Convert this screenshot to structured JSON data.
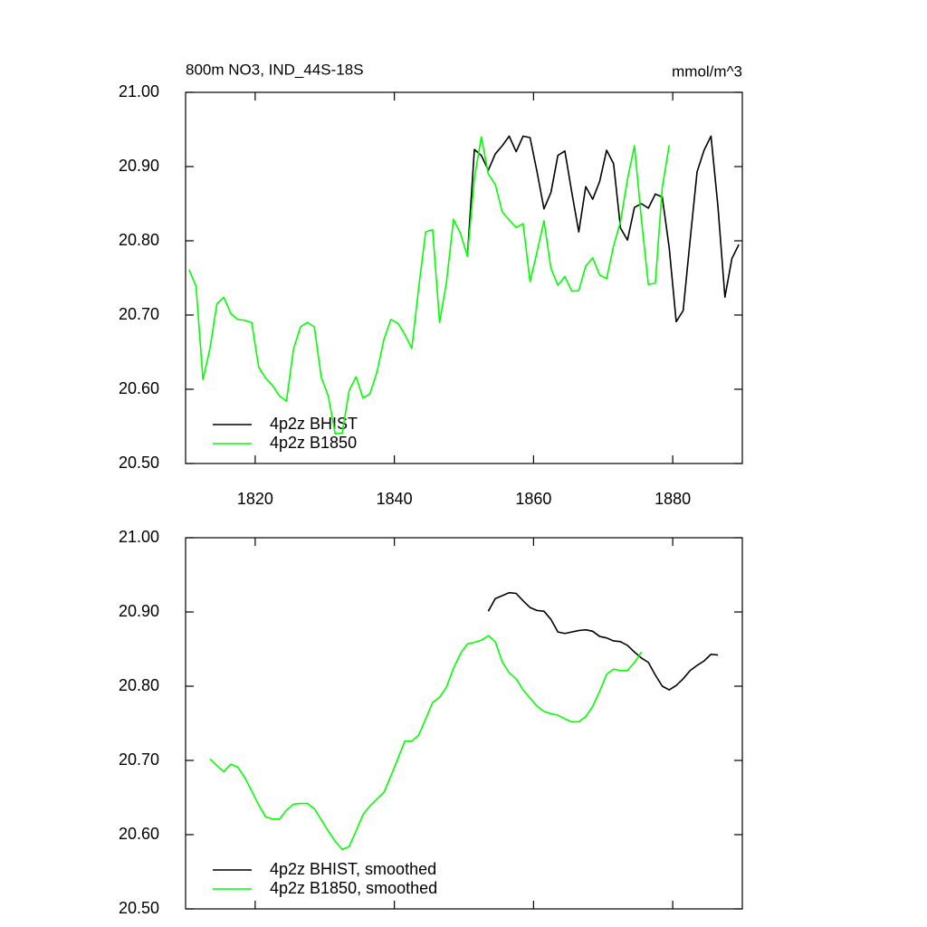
{
  "chart_data": [
    {
      "type": "line",
      "title": "800m NO3, IND_44S-18S",
      "units": "mmol/m^3",
      "x": [
        1810.5,
        1811.5,
        1812.5,
        1813.5,
        1814.5,
        1815.5,
        1816.5,
        1817.5,
        1818.5,
        1819.5,
        1820.5,
        1821.5,
        1822.5,
        1823.5,
        1824.5,
        1825.5,
        1826.5,
        1827.5,
        1828.5,
        1829.5,
        1830.5,
        1831.5,
        1832.5,
        1833.5,
        1834.5,
        1835.5,
        1836.5,
        1837.5,
        1838.5,
        1839.5,
        1840.5,
        1841.5,
        1842.5,
        1843.5,
        1844.5,
        1845.5,
        1846.5,
        1847.5,
        1848.5,
        1849.5,
        1850.5,
        1851.5,
        1852.5,
        1853.5,
        1854.5,
        1855.5,
        1856.5,
        1857.5,
        1858.5,
        1859.5,
        1860.5,
        1861.5,
        1862.5,
        1863.5,
        1864.5,
        1865.5,
        1866.5,
        1867.5,
        1868.5,
        1869.5,
        1870.5,
        1871.5,
        1872.5,
        1873.5,
        1874.5,
        1875.5,
        1876.5,
        1877.5,
        1878.5,
        1879.5,
        1880.5,
        1881.5,
        1882.5,
        1883.5,
        1884.5,
        1885.5,
        1886.5,
        1887.5,
        1888.5,
        1889.5
      ],
      "series": [
        {
          "name": "4p2z BHIST",
          "color": "#000000",
          "values": [
            null,
            null,
            null,
            null,
            null,
            null,
            null,
            null,
            null,
            null,
            null,
            null,
            null,
            null,
            null,
            null,
            null,
            null,
            null,
            null,
            null,
            null,
            null,
            null,
            null,
            null,
            null,
            null,
            null,
            null,
            null,
            null,
            null,
            null,
            null,
            null,
            null,
            null,
            null,
            null,
            20.78,
            20.923,
            20.915,
            20.895,
            20.917,
            20.928,
            20.941,
            20.92,
            20.941,
            20.939,
            20.893,
            20.843,
            20.865,
            20.915,
            20.921,
            20.865,
            20.812,
            20.873,
            20.856,
            20.88,
            20.922,
            20.904,
            20.817,
            20.801,
            20.845,
            20.85,
            20.844,
            20.863,
            20.859,
            20.79,
            20.691,
            20.706,
            20.801,
            20.893,
            20.922,
            20.941,
            20.846,
            20.724,
            20.776,
            20.795
          ]
        },
        {
          "name": "4p2z B1850",
          "color": "#00ff00",
          "values": [
            20.761,
            20.739,
            20.613,
            20.655,
            20.715,
            20.724,
            20.702,
            20.694,
            20.693,
            20.69,
            20.63,
            20.615,
            20.605,
            20.591,
            20.584,
            20.654,
            20.684,
            20.69,
            20.684,
            20.616,
            20.591,
            20.54,
            20.541,
            20.598,
            20.617,
            20.588,
            20.594,
            20.623,
            20.667,
            20.694,
            20.689,
            20.674,
            20.655,
            20.737,
            20.812,
            20.815,
            20.69,
            20.745,
            20.829,
            20.81,
            20.779,
            20.884,
            20.94,
            20.89,
            20.876,
            20.839,
            20.828,
            20.818,
            20.823,
            20.745,
            20.785,
            20.827,
            20.763,
            20.74,
            20.752,
            20.732,
            20.733,
            20.766,
            20.777,
            20.754,
            20.749,
            20.793,
            20.826,
            20.883,
            20.928,
            20.829,
            20.741,
            20.743,
            20.872,
            20.929,
            null,
            null,
            null,
            null,
            null,
            null,
            null,
            null,
            null,
            null
          ]
        }
      ],
      "xlim": [
        1810,
        1890
      ],
      "ylim": [
        20.5,
        21.0
      ],
      "xticks": [
        1820,
        1840,
        1860,
        1880
      ],
      "xtick_labels": true,
      "yticks": [
        {
          "value": 20.5,
          "label": "20.50"
        },
        {
          "value": 20.6,
          "label": "20.60"
        },
        {
          "value": 20.7,
          "label": "20.70"
        },
        {
          "value": 20.8,
          "label": "20.80"
        },
        {
          "value": 20.9,
          "label": "20.90"
        },
        {
          "value": 21.0,
          "label": "21.00"
        }
      ],
      "legend": "lower left"
    },
    {
      "type": "line",
      "x": [
        1813.5,
        1814.5,
        1815.5,
        1816.5,
        1817.5,
        1818.5,
        1819.5,
        1820.5,
        1821.5,
        1822.5,
        1823.5,
        1824.5,
        1825.5,
        1826.5,
        1827.5,
        1828.5,
        1829.5,
        1830.5,
        1831.5,
        1832.5,
        1833.5,
        1834.5,
        1835.5,
        1836.5,
        1837.5,
        1838.5,
        1839.5,
        1840.5,
        1841.5,
        1842.5,
        1843.5,
        1844.5,
        1845.5,
        1846.5,
        1847.5,
        1848.5,
        1849.5,
        1850.5,
        1851.5,
        1852.5,
        1853.5,
        1854.5,
        1855.5,
        1856.5,
        1857.5,
        1858.5,
        1859.5,
        1860.5,
        1861.5,
        1862.5,
        1863.5,
        1864.5,
        1865.5,
        1866.5,
        1867.5,
        1868.5,
        1869.5,
        1870.5,
        1871.5,
        1872.5,
        1873.5,
        1874.5,
        1875.5,
        1876.5,
        1877.5,
        1878.5,
        1879.5,
        1880.5,
        1881.5,
        1882.5,
        1883.5,
        1884.5,
        1885.5,
        1886.5
      ],
      "series": [
        {
          "name": "4p2z BHIST, smoothed",
          "color": "#000000",
          "values": [
            null,
            null,
            null,
            null,
            null,
            null,
            null,
            null,
            null,
            null,
            null,
            null,
            null,
            null,
            null,
            null,
            null,
            null,
            null,
            null,
            null,
            null,
            null,
            null,
            null,
            null,
            null,
            null,
            null,
            null,
            null,
            null,
            null,
            null,
            null,
            null,
            null,
            null,
            null,
            null,
            20.901,
            20.918,
            20.922,
            20.926,
            20.925,
            20.915,
            20.906,
            20.902,
            20.901,
            20.89,
            20.873,
            20.871,
            20.873,
            20.875,
            20.876,
            20.874,
            20.867,
            20.865,
            20.861,
            20.86,
            20.855,
            20.846,
            20.838,
            20.832,
            20.815,
            20.8,
            20.795,
            20.801,
            20.81,
            20.821,
            20.828,
            20.834,
            20.843,
            20.842
          ]
        },
        {
          "name": "4p2z B1850, smoothed",
          "color": "#00ff00",
          "values": [
            20.702,
            20.693,
            20.685,
            20.695,
            20.691,
            20.677,
            20.659,
            20.64,
            20.624,
            20.621,
            20.621,
            20.633,
            20.641,
            20.642,
            20.642,
            20.635,
            20.62,
            20.605,
            20.591,
            20.58,
            20.584,
            20.605,
            20.627,
            20.639,
            20.648,
            20.657,
            20.679,
            20.702,
            20.726,
            20.726,
            20.734,
            20.756,
            20.778,
            20.785,
            20.799,
            20.824,
            20.844,
            20.857,
            20.859,
            20.862,
            20.868,
            20.86,
            20.833,
            20.818,
            20.81,
            20.795,
            20.784,
            20.773,
            20.766,
            20.763,
            20.761,
            20.756,
            20.752,
            20.752,
            20.759,
            20.773,
            20.793,
            20.816,
            20.823,
            20.821,
            20.821,
            20.832,
            20.846,
            null,
            null,
            null,
            null,
            null,
            null,
            null,
            null,
            null,
            null,
            null
          ]
        }
      ],
      "xlim": [
        1810,
        1890
      ],
      "ylim": [
        20.5,
        21.0
      ],
      "xticks": [
        1820,
        1840,
        1860,
        1880
      ],
      "xtick_labels": false,
      "yticks": [
        {
          "value": 20.5,
          "label": "20.50"
        },
        {
          "value": 20.6,
          "label": "20.60"
        },
        {
          "value": 20.7,
          "label": "20.70"
        },
        {
          "value": 20.8,
          "label": "20.80"
        },
        {
          "value": 20.9,
          "label": "20.90"
        },
        {
          "value": 21.0,
          "label": "21.00"
        }
      ],
      "legend": "lower left"
    }
  ]
}
